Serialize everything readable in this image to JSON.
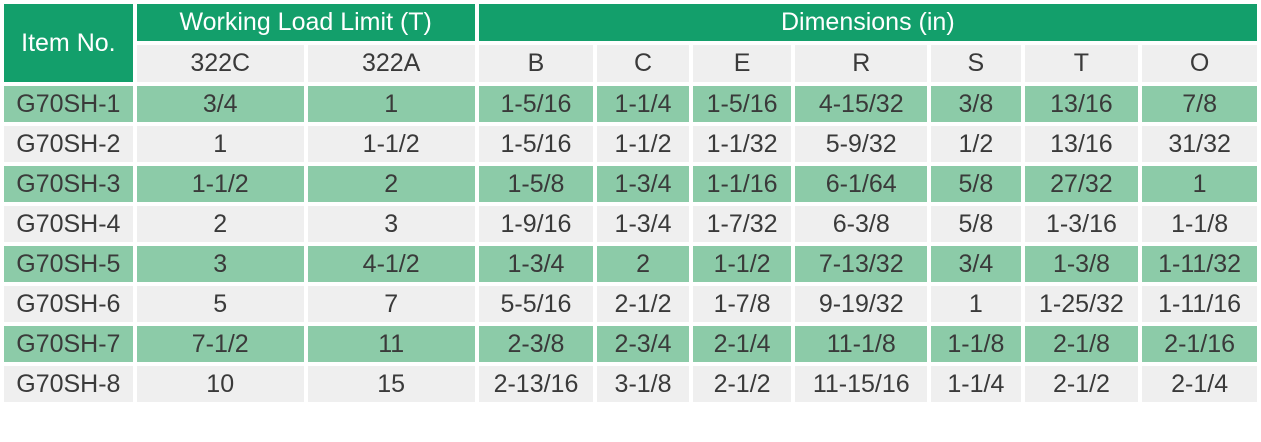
{
  "table": {
    "item_header": "Item No.",
    "wll_header": "Working Load Limit (T)",
    "dim_header": "Dimensions (in)",
    "wll_columns": [
      "322C",
      "322A"
    ],
    "dim_columns": [
      "B",
      "C",
      "E",
      "R",
      "S",
      "T",
      "O"
    ],
    "rows": [
      {
        "item": "G70SH-1",
        "cells": [
          "3/4",
          "1",
          "1-5/16",
          "1-1/4",
          "1-5/16",
          "4-15/32",
          "3/8",
          "13/16",
          "7/8"
        ]
      },
      {
        "item": "G70SH-2",
        "cells": [
          "1",
          "1-1/2",
          "1-5/16",
          "1-1/2",
          "1-1/32",
          "5-9/32",
          "1/2",
          "13/16",
          "31/32"
        ]
      },
      {
        "item": "G70SH-3",
        "cells": [
          "1-1/2",
          "2",
          "1-5/8",
          "1-3/4",
          "1-1/16",
          "6-1/64",
          "5/8",
          "27/32",
          "1"
        ]
      },
      {
        "item": "G70SH-4",
        "cells": [
          "2",
          "3",
          "1-9/16",
          "1-3/4",
          "1-7/32",
          "6-3/8",
          "5/8",
          "1-3/16",
          "1-1/8"
        ]
      },
      {
        "item": "G70SH-5",
        "cells": [
          "3",
          "4-1/2",
          "1-3/4",
          "2",
          "1-1/2",
          "7-13/32",
          "3/4",
          "1-3/8",
          "1-11/32"
        ]
      },
      {
        "item": "G70SH-6",
        "cells": [
          "5",
          "7",
          "5-5/16",
          "2-1/2",
          "1-7/8",
          "9-19/32",
          "1",
          "1-25/32",
          "1-11/16"
        ]
      },
      {
        "item": "G70SH-7",
        "cells": [
          "7-1/2",
          "11",
          "2-3/8",
          "2-3/4",
          "2-1/4",
          "11-1/8",
          "1-1/8",
          "2-1/8",
          "2-1/16"
        ]
      },
      {
        "item": "G70SH-8",
        "cells": [
          "10",
          "15",
          "2-13/16",
          "3-1/8",
          "2-1/2",
          "11-15/16",
          "1-1/4",
          "2-1/2",
          "2-1/4"
        ]
      }
    ]
  },
  "colors": {
    "header_green": "#139f6b",
    "row_green": "#8ccba8",
    "row_grey": "#efefef",
    "text": "#3a3a3a"
  }
}
